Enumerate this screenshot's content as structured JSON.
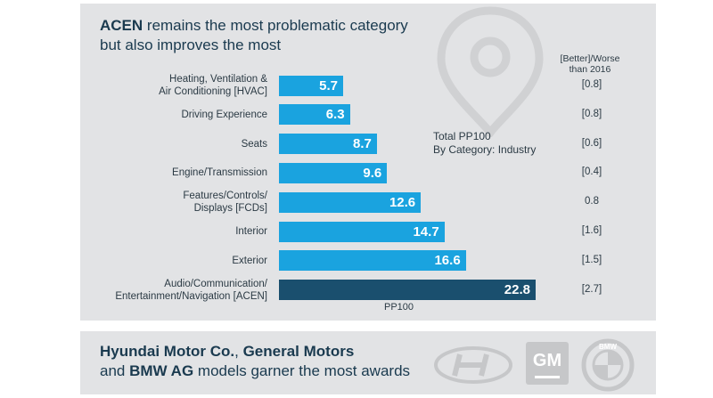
{
  "header": {
    "title_bold": "ACEN",
    "title_rest": "remains the most problematic category",
    "title_line2": "but also improves the most"
  },
  "chart_data": {
    "type": "bar",
    "orientation": "horizontal",
    "title": "Total PP100\nBy Category: Industry",
    "xlabel": "PP100",
    "change_header": "[Better]/Worse\nthan 2016",
    "categories": [
      "Heating, Ventilation &\nAir Conditioning [HVAC]",
      "Driving Experience",
      "Seats",
      "Engine/Transmission",
      "Features/Controls/\nDisplays [FCDs]",
      "Interior",
      "Exterior",
      "Audio/Communication/\nEntertainment/Navigation [ACEN]"
    ],
    "values": [
      5.7,
      6.3,
      8.7,
      9.6,
      12.6,
      14.7,
      16.6,
      22.8
    ],
    "value_labels": [
      "5.7",
      "6.3",
      "8.7",
      "9.6",
      "12.6",
      "14.7",
      "16.6",
      "22.8"
    ],
    "changes": [
      "[0.8]",
      "[0.8]",
      "[0.6]",
      "[0.4]",
      "0.8",
      "[1.6]",
      "[1.5]",
      "[2.7]"
    ],
    "xlim": [
      0,
      22.8
    ],
    "colors": {
      "bar": "#1aa3df",
      "highlight": "#1a4f6e",
      "highlight_index": 7
    }
  },
  "footer": {
    "line1_bold_a": "Hyundai Motor Co.",
    "line1_sep": ",",
    "line1_bold_b": "General Motors",
    "line2_prefix": "and",
    "line2_bold": "BMW AG",
    "line2_rest": "models garner the most awards",
    "logos": [
      {
        "icon": "hyundai-logo-icon"
      },
      {
        "icon": "gm-logo-icon",
        "text": "GM"
      },
      {
        "icon": "bmw-logo-icon",
        "text": "BMW"
      }
    ]
  }
}
